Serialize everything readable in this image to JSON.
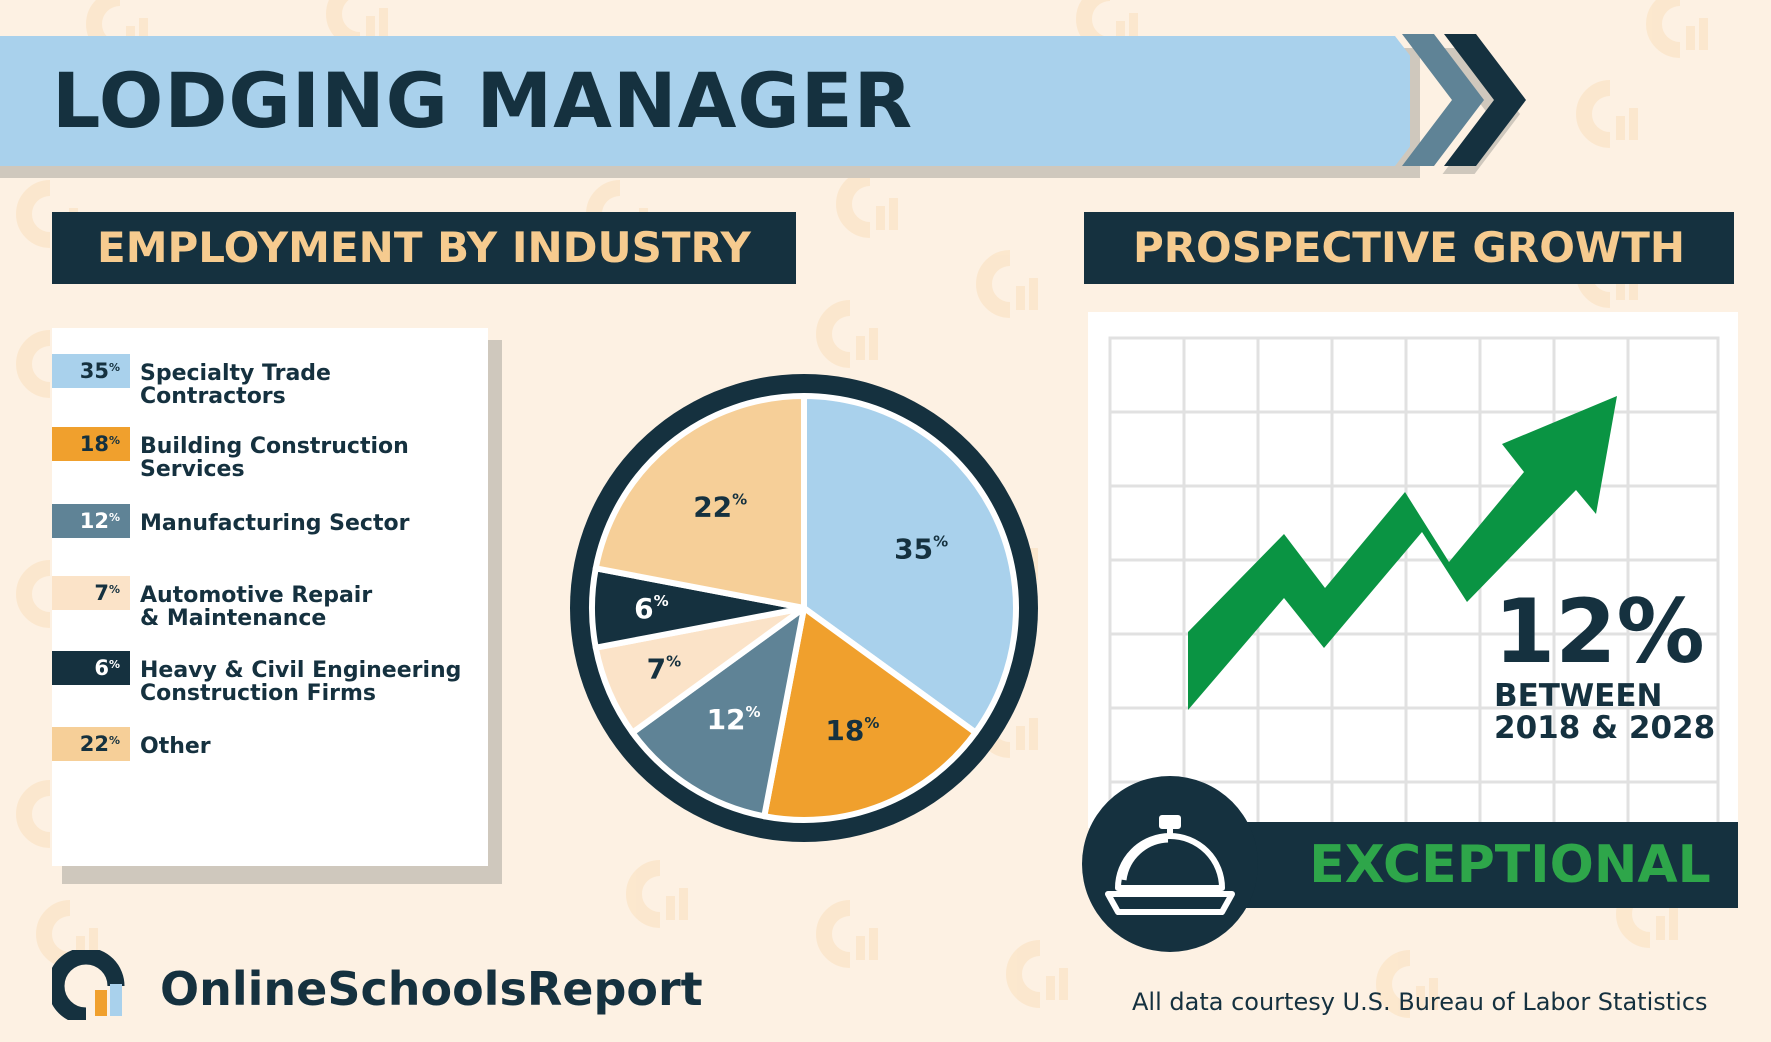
{
  "title": "LODGING MANAGER",
  "employment": {
    "header": "EMPLOYMENT BY INDUSTRY"
  },
  "growth": {
    "header": "PROSPECTIVE GROWTH",
    "percent": "12%",
    "period_line1": "BETWEEN",
    "period_line2": "2018 & 2028",
    "rating": "EXCEPTIONAL",
    "arrow_color": "#0a9443",
    "icon": "service-bell-icon"
  },
  "chart_data": {
    "type": "pie",
    "categories": [
      "Specialty Trade Contractors",
      "Building Construction Services",
      "Manufacturing Sector",
      "Automotive Repair & Maintenance",
      "Heavy & Civil Engineering Construction Firms",
      "Other"
    ],
    "legend_labels": [
      "Specialty Trade\nContractors",
      "Building Construction\nServices",
      "Manufacturing Sector",
      "Automotive Repair\n& Maintenance",
      "Heavy & Civil Engineering\nConstruction Firms",
      "Other"
    ],
    "values": [
      35,
      18,
      12,
      7,
      6,
      22
    ],
    "unit": "%",
    "colors": [
      "#a9d1ec",
      "#f0a02d",
      "#5f8396",
      "#fbe3c8",
      "#15313f",
      "#f6cf98"
    ],
    "label_colors": [
      "#15313f",
      "#15313f",
      "#ffffff",
      "#15313f",
      "#ffffff",
      "#15313f"
    ],
    "legend": "left"
  },
  "footer": {
    "logo_text": "OnlineSchoolsReport",
    "source": "All data courtesy U.S. Bureau of Labor Statistics"
  }
}
